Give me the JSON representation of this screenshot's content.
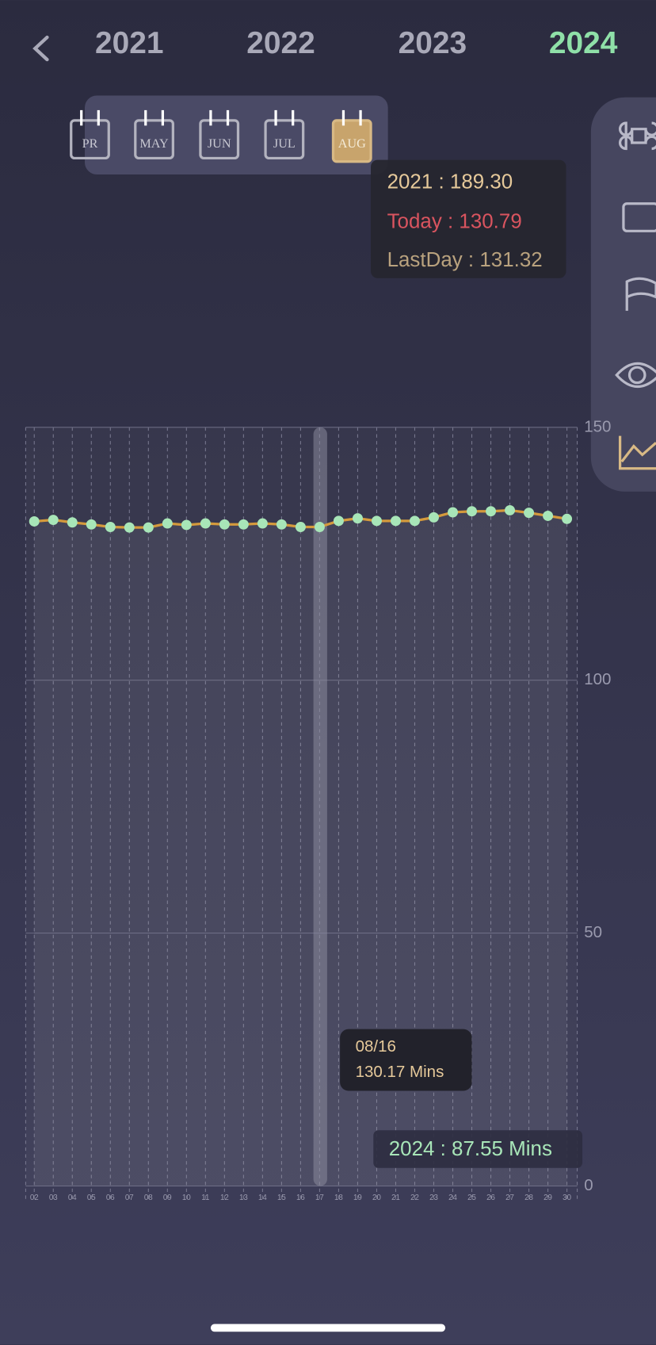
{
  "header": {
    "years": [
      "2021",
      "2022",
      "2023",
      "2024"
    ]
  },
  "months": [
    "PR",
    "MAY",
    "JUN",
    "JUL",
    "AUG"
  ],
  "summary_tooltip": {
    "lines": [
      "2021 : 189.30",
      "Today : 130.79",
      "LastDay : 131.32"
    ]
  },
  "point_tooltip": {
    "date": "08/16",
    "value": "130.17 Mins"
  },
  "total_label": "2024 : 87.55 Mins",
  "chart_data": {
    "type": "line",
    "categories": [
      "02",
      "03",
      "04",
      "05",
      "06",
      "07",
      "08",
      "09",
      "10",
      "11",
      "12",
      "13",
      "14",
      "15",
      "16",
      "17",
      "18",
      "19",
      "20",
      "21",
      "22",
      "23",
      "24",
      "25",
      "26",
      "27",
      "28",
      "29",
      "30"
    ],
    "values": [
      131.4,
      131.7,
      131.2,
      130.8,
      130.3,
      130.2,
      130.2,
      131.0,
      130.7,
      131.0,
      130.8,
      130.8,
      131.0,
      130.8,
      130.3,
      130.3,
      131.5,
      132.0,
      131.5,
      131.5,
      131.5,
      132.2,
      133.2,
      133.4,
      133.4,
      133.6,
      133.1,
      132.5,
      131.9
    ],
    "color": "#d49a3c",
    "marker_color": "#a8e6b8",
    "ylim": [
      0,
      150
    ],
    "yticks": [
      0,
      50,
      100,
      150
    ],
    "grid": true
  }
}
